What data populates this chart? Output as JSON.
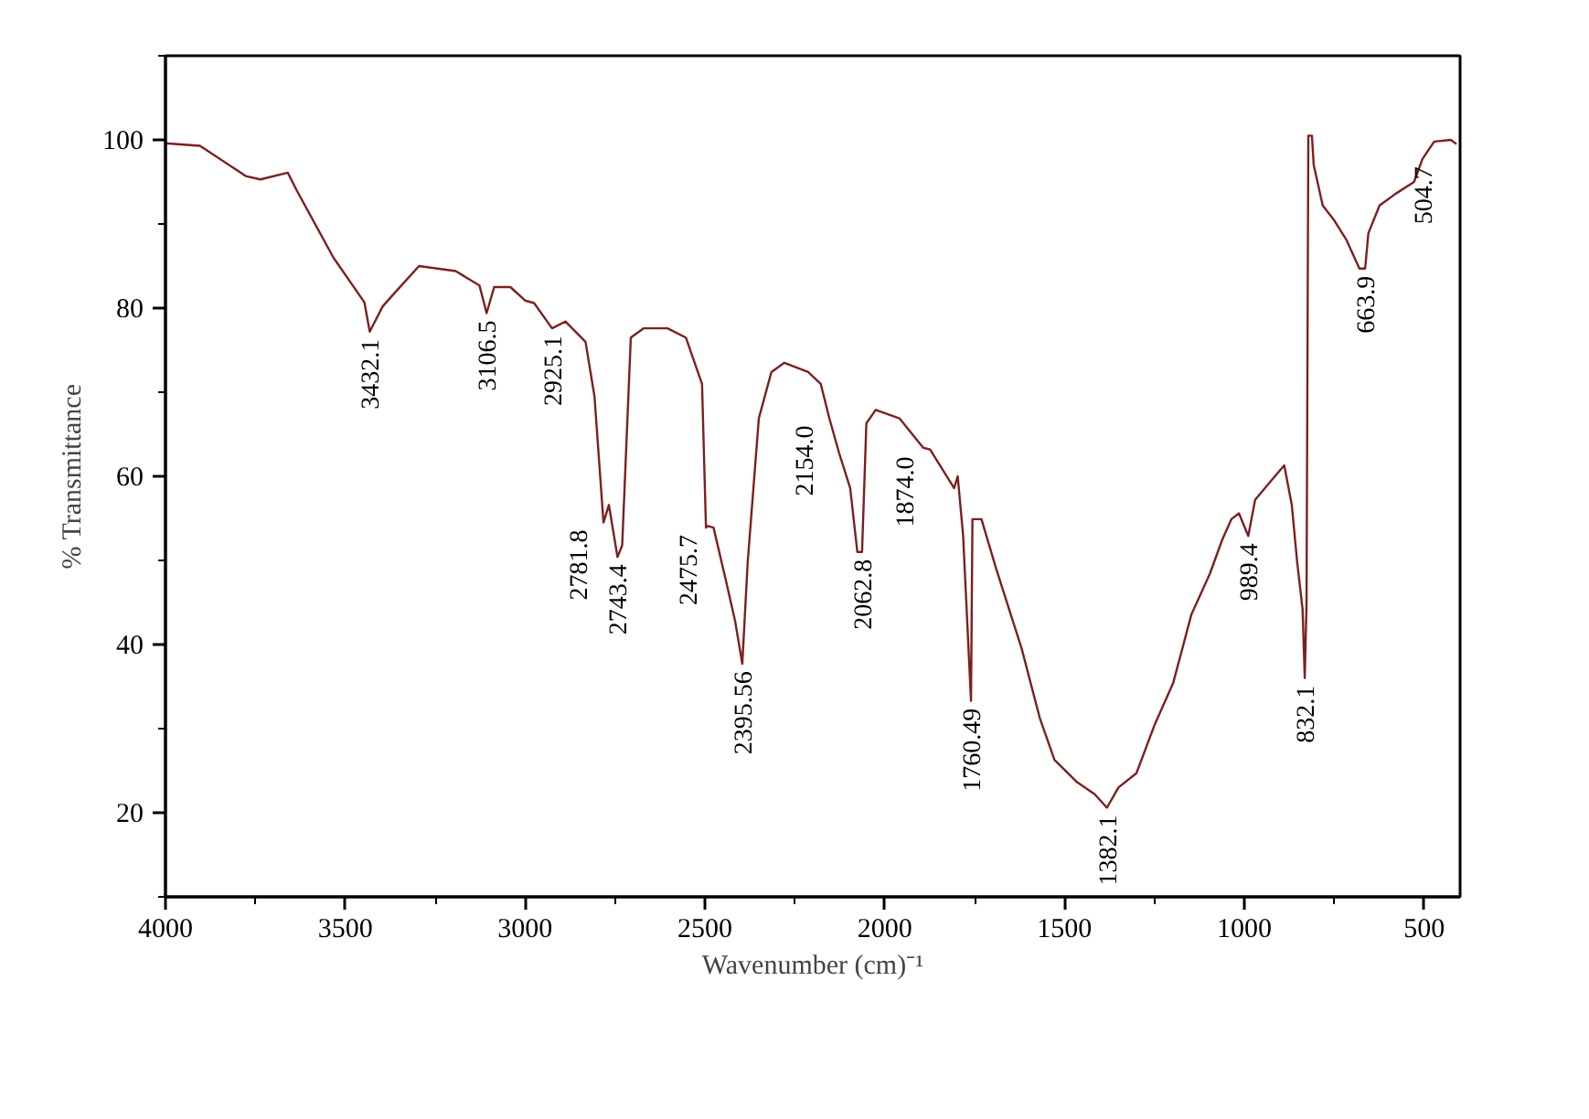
{
  "chart_data": {
    "type": "line",
    "xlabel": "Wavenumber (cm)⁻¹",
    "ylabel": "% Transmittance",
    "xlim": [
      4000,
      400
    ],
    "ylim": [
      10,
      110
    ],
    "xticks": [
      4000,
      3500,
      3000,
      2500,
      2000,
      1500,
      1000,
      500
    ],
    "yticks": [
      20,
      40,
      60,
      80,
      100
    ],
    "grid": false,
    "series": [
      {
        "color": "#7b2020",
        "x": [
          4000,
          3904,
          3777,
          3736,
          3660,
          3635,
          3533,
          3447,
          3432,
          3396,
          3365,
          3295,
          3193,
          3127,
          3107,
          3086,
          3041,
          3000,
          2975,
          2925,
          2888,
          2832,
          2807,
          2782,
          2767,
          2743,
          2730,
          2706,
          2670,
          2604,
          2553,
          2508,
          2497,
          2492,
          2476,
          2442,
          2416,
          2396,
          2381,
          2350,
          2315,
          2279,
          2213,
          2178,
          2154,
          2127,
          2096,
          2076,
          2063,
          2051,
          2025,
          1959,
          1893,
          1874,
          1807,
          1797,
          1782,
          1760,
          1756,
          1731,
          1690,
          1619,
          1569,
          1528,
          1467,
          1416,
          1382,
          1350,
          1300,
          1249,
          1198,
          1147,
          1096,
          1061,
          1036,
          1015,
          989,
          970,
          929,
          889,
          868,
          853,
          838,
          832,
          827,
          822,
          812,
          807,
          782,
          751,
          716,
          680,
          664,
          655,
          624,
          579,
          528,
          505,
          472,
          426,
          410
        ],
        "values": [
          99.6,
          99.3,
          95.7,
          95.3,
          96.1,
          94,
          86,
          80.7,
          77.2,
          80.2,
          81.7,
          85,
          84.4,
          82.7,
          79.4,
          82.5,
          82.5,
          80.9,
          80.6,
          77.6,
          78.4,
          76,
          69.5,
          54.5,
          56.6,
          50.4,
          51.8,
          76.5,
          77.6,
          77.6,
          76.5,
          71,
          53.9,
          54.1,
          53.9,
          47.7,
          42.8,
          37.7,
          49.8,
          66.9,
          72.4,
          73.5,
          72.4,
          71,
          66.9,
          62.8,
          58.6,
          51,
          51,
          66.3,
          67.9,
          66.9,
          63.4,
          63.2,
          58.6,
          60,
          53,
          33.3,
          54.9,
          54.9,
          49,
          39.5,
          31.3,
          26.3,
          23.7,
          22.2,
          20.6,
          23,
          24.7,
          30.5,
          35.4,
          43.6,
          48.4,
          52.5,
          54.9,
          55.6,
          52.9,
          57.2,
          59.3,
          61.3,
          56.6,
          49.8,
          44.2,
          36,
          44.9,
          100.5,
          100.5,
          97,
          92.2,
          90.5,
          88.1,
          84.7,
          84.7,
          88.9,
          92.2,
          93.6,
          95,
          97.7,
          99.8,
          100,
          99.5
        ]
      }
    ],
    "annotations": [
      {
        "text": "3432.1",
        "x": 3432,
        "y": 77.2
      },
      {
        "text": "3106.5",
        "x": 3107,
        "y": 79.4
      },
      {
        "text": "2925.1",
        "x": 2925,
        "y": 77.6
      },
      {
        "text": "2781.8",
        "x": 2782,
        "y": 54.5
      },
      {
        "text": "2743.4",
        "x": 2743,
        "y": 50.4
      },
      {
        "text": "2475.7",
        "x": 2476,
        "y": 53.9
      },
      {
        "text": "2395.56",
        "x": 2396,
        "y": 37.7
      },
      {
        "text": "2154.0",
        "x": 2154,
        "y": 66.9
      },
      {
        "text": "2062.8",
        "x": 2063,
        "y": 51
      },
      {
        "text": "1874.0",
        "x": 1874,
        "y": 63.2
      },
      {
        "text": "1760.49",
        "x": 1760,
        "y": 33.3
      },
      {
        "text": "1382.1",
        "x": 1382,
        "y": 20.6
      },
      {
        "text": "989.4",
        "x": 989,
        "y": 52.9
      },
      {
        "text": "832.1",
        "x": 832,
        "y": 36
      },
      {
        "text": "663.9",
        "x": 664,
        "y": 84.7
      },
      {
        "text": "504.7",
        "x": 505,
        "y": 97.7
      }
    ]
  }
}
